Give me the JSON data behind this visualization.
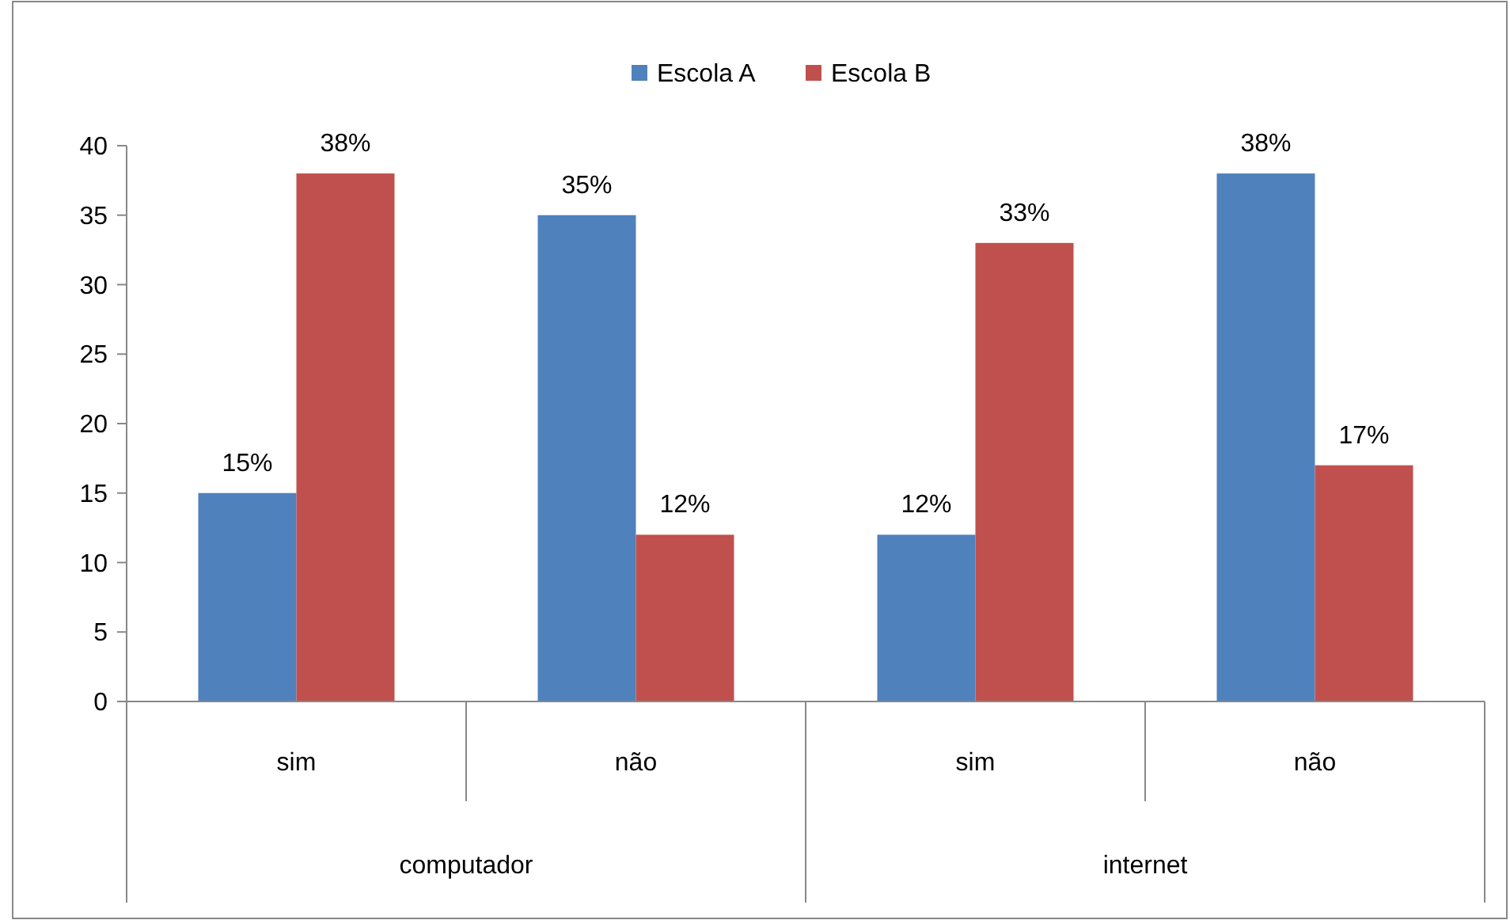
{
  "chart_data": {
    "type": "bar",
    "categories": [
      "sim",
      "não",
      "sim",
      "não"
    ],
    "series": [
      {
        "name": "Escola A",
        "color": "#4f81bd",
        "values": [
          15,
          35,
          12,
          38
        ],
        "value_labels": [
          "15%",
          "35%",
          "12%",
          "38%"
        ]
      },
      {
        "name": "Escola B",
        "color": "#c0504d",
        "values": [
          38,
          12,
          33,
          17
        ],
        "value_labels": [
          "38%",
          "12%",
          "33%",
          "17%"
        ]
      }
    ],
    "annotations": [
      "computador",
      "internet"
    ],
    "ylim": [
      0,
      40
    ],
    "yticks": [
      0,
      5,
      10,
      15,
      20,
      25,
      30,
      35,
      40
    ],
    "legend": "top",
    "grid": false
  }
}
